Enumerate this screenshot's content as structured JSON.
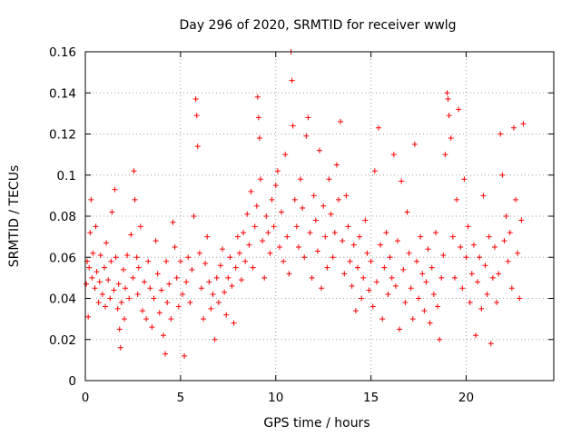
{
  "chart_data": {
    "type": "scatter",
    "title": "Day 296 of 2020, SRMTID for receiver wwlg",
    "xlabel": "GPS time / hours",
    "ylabel": "SRMTID / TECUs",
    "xlim": [
      0,
      24.6
    ],
    "ylim": [
      0,
      0.16
    ],
    "xticks": [
      0,
      5,
      10,
      15,
      20
    ],
    "xtick_labels": [
      "0",
      "5",
      "10",
      "15",
      "20"
    ],
    "yticks": [
      0,
      0.02,
      0.04,
      0.06,
      0.08,
      0.1,
      0.12,
      0.14,
      0.16
    ],
    "ytick_labels": [
      "0",
      "0.02",
      "0.04",
      "0.06",
      "0.08",
      "0.1",
      "0.12",
      "0.14",
      "0.16"
    ],
    "grid": true,
    "marker": "+",
    "series_color": "#ff0000",
    "series": [
      {
        "name": "SRMTID",
        "points": [
          [
            0.05,
            0.047
          ],
          [
            0.1,
            0.058
          ],
          [
            0.15,
            0.031
          ],
          [
            0.2,
            0.055
          ],
          [
            0.25,
            0.072
          ],
          [
            0.3,
            0.088
          ],
          [
            0.35,
            0.05
          ],
          [
            0.4,
            0.062
          ],
          [
            0.5,
            0.045
          ],
          [
            0.55,
            0.075
          ],
          [
            0.6,
            0.053
          ],
          [
            0.7,
            0.038
          ],
          [
            0.75,
            0.048
          ],
          [
            0.8,
            0.061
          ],
          [
            0.9,
            0.042
          ],
          [
            1.0,
            0.055
          ],
          [
            1.05,
            0.036
          ],
          [
            1.1,
            0.067
          ],
          [
            1.2,
            0.049
          ],
          [
            1.3,
            0.04
          ],
          [
            1.35,
            0.058
          ],
          [
            1.4,
            0.082
          ],
          [
            1.5,
            0.044
          ],
          [
            1.55,
            0.093
          ],
          [
            1.6,
            0.06
          ],
          [
            1.7,
            0.035
          ],
          [
            1.75,
            0.047
          ],
          [
            1.8,
            0.025
          ],
          [
            1.85,
            0.016
          ],
          [
            1.9,
            0.038
          ],
          [
            2.0,
            0.054
          ],
          [
            2.05,
            0.03
          ],
          [
            2.1,
            0.045
          ],
          [
            2.2,
            0.061
          ],
          [
            2.3,
            0.04
          ],
          [
            2.4,
            0.071
          ],
          [
            2.5,
            0.05
          ],
          [
            2.55,
            0.102
          ],
          [
            2.6,
            0.088
          ],
          [
            2.7,
            0.06
          ],
          [
            2.75,
            0.042
          ],
          [
            2.8,
            0.055
          ],
          [
            2.9,
            0.075
          ],
          [
            3.0,
            0.034
          ],
          [
            3.1,
            0.048
          ],
          [
            3.2,
            0.03
          ],
          [
            3.3,
            0.058
          ],
          [
            3.4,
            0.045
          ],
          [
            3.5,
            0.026
          ],
          [
            3.6,
            0.04
          ],
          [
            3.7,
            0.068
          ],
          [
            3.8,
            0.052
          ],
          [
            3.9,
            0.033
          ],
          [
            4.0,
            0.044
          ],
          [
            4.1,
            0.022
          ],
          [
            4.2,
            0.013
          ],
          [
            4.25,
            0.058
          ],
          [
            4.3,
            0.038
          ],
          [
            4.4,
            0.047
          ],
          [
            4.5,
            0.03
          ],
          [
            4.6,
            0.077
          ],
          [
            4.7,
            0.065
          ],
          [
            4.8,
            0.05
          ],
          [
            4.9,
            0.036
          ],
          [
            5.0,
            0.058
          ],
          [
            5.1,
            0.042
          ],
          [
            5.2,
            0.012
          ],
          [
            5.3,
            0.048
          ],
          [
            5.4,
            0.06
          ],
          [
            5.5,
            0.038
          ],
          [
            5.6,
            0.054
          ],
          [
            5.7,
            0.08
          ],
          [
            5.8,
            0.137
          ],
          [
            5.85,
            0.129
          ],
          [
            5.9,
            0.114
          ],
          [
            6.0,
            0.062
          ],
          [
            6.1,
            0.045
          ],
          [
            6.2,
            0.03
          ],
          [
            6.3,
            0.057
          ],
          [
            6.4,
            0.07
          ],
          [
            6.5,
            0.048
          ],
          [
            6.6,
            0.035
          ],
          [
            6.7,
            0.042
          ],
          [
            6.8,
            0.02
          ],
          [
            6.9,
            0.05
          ],
          [
            7.0,
            0.038
          ],
          [
            7.1,
            0.056
          ],
          [
            7.2,
            0.064
          ],
          [
            7.3,
            0.043
          ],
          [
            7.4,
            0.032
          ],
          [
            7.5,
            0.05
          ],
          [
            7.6,
            0.06
          ],
          [
            7.7,
            0.046
          ],
          [
            7.8,
            0.028
          ],
          [
            7.9,
            0.055
          ],
          [
            8.0,
            0.07
          ],
          [
            8.1,
            0.062
          ],
          [
            8.2,
            0.049
          ],
          [
            8.3,
            0.072
          ],
          [
            8.4,
            0.058
          ],
          [
            8.5,
            0.081
          ],
          [
            8.6,
            0.066
          ],
          [
            8.7,
            0.092
          ],
          [
            8.8,
            0.055
          ],
          [
            8.9,
            0.075
          ],
          [
            9.0,
            0.085
          ],
          [
            9.05,
            0.138
          ],
          [
            9.1,
            0.128
          ],
          [
            9.15,
            0.118
          ],
          [
            9.2,
            0.098
          ],
          [
            9.3,
            0.068
          ],
          [
            9.4,
            0.05
          ],
          [
            9.5,
            0.08
          ],
          [
            9.6,
            0.072
          ],
          [
            9.7,
            0.062
          ],
          [
            9.8,
            0.088
          ],
          [
            9.9,
            0.075
          ],
          [
            10.0,
            0.095
          ],
          [
            10.1,
            0.102
          ],
          [
            10.2,
            0.065
          ],
          [
            10.3,
            0.082
          ],
          [
            10.4,
            0.058
          ],
          [
            10.5,
            0.11
          ],
          [
            10.6,
            0.07
          ],
          [
            10.7,
            0.052
          ],
          [
            10.8,
            0.16
          ],
          [
            10.85,
            0.146
          ],
          [
            10.9,
            0.124
          ],
          [
            11.0,
            0.088
          ],
          [
            11.1,
            0.075
          ],
          [
            11.2,
            0.065
          ],
          [
            11.3,
            0.098
          ],
          [
            11.4,
            0.084
          ],
          [
            11.5,
            0.06
          ],
          [
            11.6,
            0.119
          ],
          [
            11.7,
            0.128
          ],
          [
            11.8,
            0.072
          ],
          [
            11.9,
            0.05
          ],
          [
            12.0,
            0.09
          ],
          [
            12.1,
            0.078
          ],
          [
            12.2,
            0.063
          ],
          [
            12.3,
            0.112
          ],
          [
            12.4,
            0.045
          ],
          [
            12.5,
            0.085
          ],
          [
            12.6,
            0.07
          ],
          [
            12.7,
            0.055
          ],
          [
            12.8,
            0.098
          ],
          [
            12.9,
            0.081
          ],
          [
            13.0,
            0.06
          ],
          [
            13.1,
            0.072
          ],
          [
            13.2,
            0.105
          ],
          [
            13.3,
            0.088
          ],
          [
            13.4,
            0.126
          ],
          [
            13.5,
            0.068
          ],
          [
            13.6,
            0.052
          ],
          [
            13.7,
            0.09
          ],
          [
            13.8,
            0.075
          ],
          [
            13.9,
            0.058
          ],
          [
            14.0,
            0.046
          ],
          [
            14.1,
            0.066
          ],
          [
            14.2,
            0.034
          ],
          [
            14.3,
            0.055
          ],
          [
            14.4,
            0.07
          ],
          [
            14.5,
            0.04
          ],
          [
            14.6,
            0.05
          ],
          [
            14.7,
            0.078
          ],
          [
            14.8,
            0.062
          ],
          [
            14.9,
            0.044
          ],
          [
            15.0,
            0.058
          ],
          [
            15.1,
            0.036
          ],
          [
            15.2,
            0.102
          ],
          [
            15.3,
            0.048
          ],
          [
            15.4,
            0.123
          ],
          [
            15.5,
            0.066
          ],
          [
            15.6,
            0.03
          ],
          [
            15.7,
            0.055
          ],
          [
            15.8,
            0.072
          ],
          [
            15.9,
            0.042
          ],
          [
            16.0,
            0.06
          ],
          [
            16.1,
            0.05
          ],
          [
            16.2,
            0.11
          ],
          [
            16.3,
            0.046
          ],
          [
            16.4,
            0.068
          ],
          [
            16.5,
            0.025
          ],
          [
            16.6,
            0.097
          ],
          [
            16.7,
            0.054
          ],
          [
            16.8,
            0.038
          ],
          [
            16.9,
            0.082
          ],
          [
            17.0,
            0.062
          ],
          [
            17.1,
            0.045
          ],
          [
            17.2,
            0.03
          ],
          [
            17.3,
            0.115
          ],
          [
            17.4,
            0.058
          ],
          [
            17.5,
            0.04
          ],
          [
            17.6,
            0.07
          ],
          [
            17.7,
            0.052
          ],
          [
            17.8,
            0.034
          ],
          [
            17.9,
            0.048
          ],
          [
            18.0,
            0.064
          ],
          [
            18.1,
            0.028
          ],
          [
            18.2,
            0.055
          ],
          [
            18.3,
            0.042
          ],
          [
            18.4,
            0.072
          ],
          [
            18.5,
            0.036
          ],
          [
            18.6,
            0.02
          ],
          [
            18.7,
            0.05
          ],
          [
            18.8,
            0.061
          ],
          [
            18.9,
            0.11
          ],
          [
            19.0,
            0.14
          ],
          [
            19.05,
            0.137
          ],
          [
            19.1,
            0.129
          ],
          [
            19.2,
            0.118
          ],
          [
            19.3,
            0.07
          ],
          [
            19.4,
            0.05
          ],
          [
            19.5,
            0.088
          ],
          [
            19.6,
            0.132
          ],
          [
            19.7,
            0.065
          ],
          [
            19.8,
            0.045
          ],
          [
            19.9,
            0.098
          ],
          [
            20.0,
            0.06
          ],
          [
            20.1,
            0.075
          ],
          [
            20.2,
            0.038
          ],
          [
            20.3,
            0.052
          ],
          [
            20.4,
            0.066
          ],
          [
            20.5,
            0.022
          ],
          [
            20.6,
            0.048
          ],
          [
            20.7,
            0.06
          ],
          [
            20.8,
            0.035
          ],
          [
            20.9,
            0.09
          ],
          [
            21.0,
            0.056
          ],
          [
            21.1,
            0.042
          ],
          [
            21.2,
            0.07
          ],
          [
            21.3,
            0.018
          ],
          [
            21.4,
            0.05
          ],
          [
            21.5,
            0.065
          ],
          [
            21.6,
            0.038
          ],
          [
            21.7,
            0.052
          ],
          [
            21.8,
            0.12
          ],
          [
            21.9,
            0.1
          ],
          [
            22.0,
            0.068
          ],
          [
            22.1,
            0.08
          ],
          [
            22.2,
            0.058
          ],
          [
            22.3,
            0.072
          ],
          [
            22.4,
            0.045
          ],
          [
            22.5,
            0.123
          ],
          [
            22.6,
            0.088
          ],
          [
            22.7,
            0.062
          ],
          [
            22.8,
            0.04
          ],
          [
            22.9,
            0.078
          ],
          [
            23.0,
            0.125
          ]
        ]
      }
    ]
  }
}
